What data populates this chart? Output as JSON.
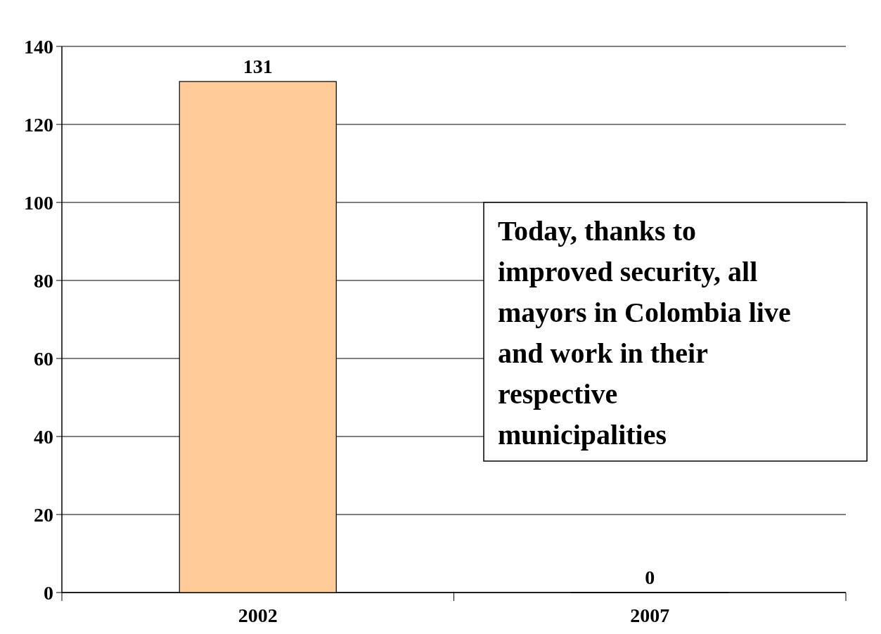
{
  "chart_data": {
    "type": "bar",
    "categories": [
      "2002",
      "2007"
    ],
    "values": [
      131,
      0
    ],
    "color": "#ffcc99",
    "ylim": [
      0,
      140
    ],
    "yticks": [
      0,
      20,
      40,
      60,
      80,
      100,
      120,
      140
    ],
    "grid": "y",
    "data_labels": true,
    "annotations": [
      "Today, thanks to improved security, all mayors in Colombia live and work in their respective municipalities"
    ]
  }
}
